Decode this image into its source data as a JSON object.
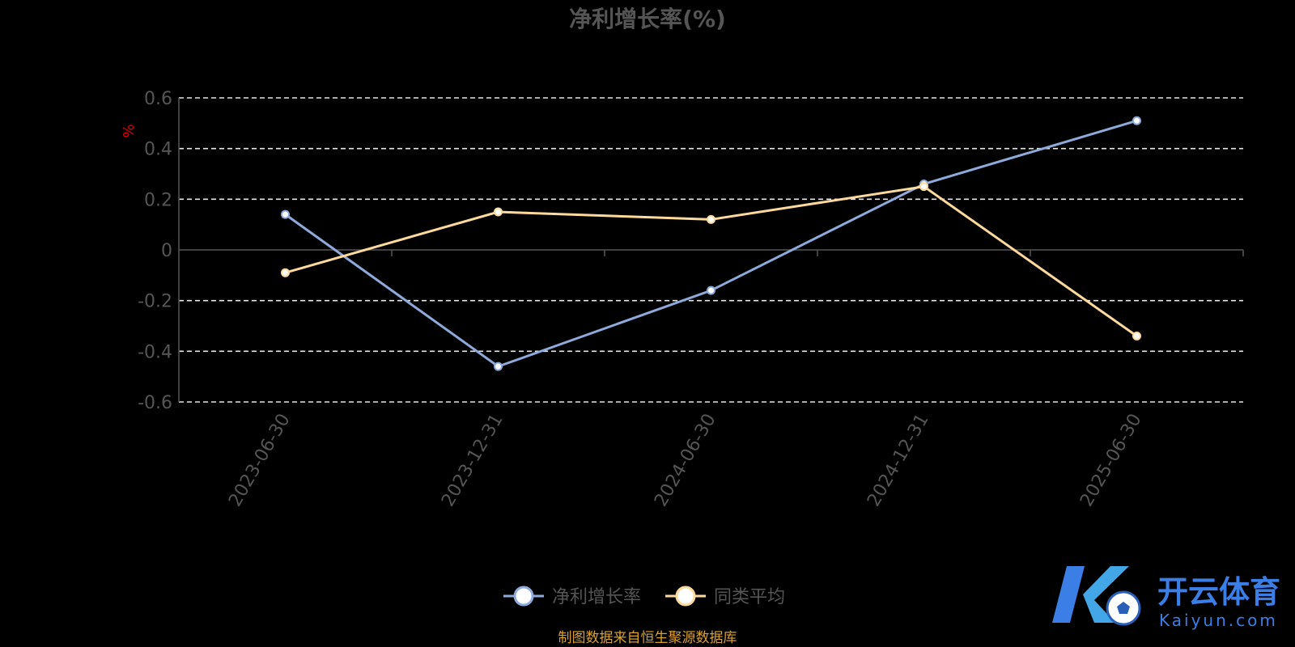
{
  "chart_data": {
    "type": "line",
    "title": "净利增长率(%)",
    "ylabel": "%",
    "xlabel": "",
    "categories": [
      "2023-06-30",
      "2023-12-31",
      "2024-06-30",
      "2024-12-31",
      "2025-06-30"
    ],
    "series": [
      {
        "name": "净利增长率",
        "values": [
          0.14,
          -0.46,
          -0.16,
          0.26,
          0.51
        ],
        "color": "#8eaadb"
      },
      {
        "name": "同类平均",
        "values": [
          -0.09,
          0.15,
          0.12,
          0.25,
          -0.34
        ],
        "color": "#fdd99b"
      }
    ],
    "ylim": [
      -0.6,
      0.6
    ],
    "yticks": [
      "0.6",
      "0.4",
      "0.2",
      "0",
      "-0.2",
      "-0.4",
      "-0.6"
    ],
    "ytick_values": [
      0.6,
      0.4,
      0.2,
      0,
      -0.2,
      -0.4,
      -0.6
    ],
    "grid": true,
    "legend_position": "bottom-center"
  },
  "source_note": "制图数据来自恒生聚源数据库",
  "watermark": {
    "brand": "开云体育",
    "domain": "Kaiyun.com",
    "color": "#3a7ee6"
  }
}
